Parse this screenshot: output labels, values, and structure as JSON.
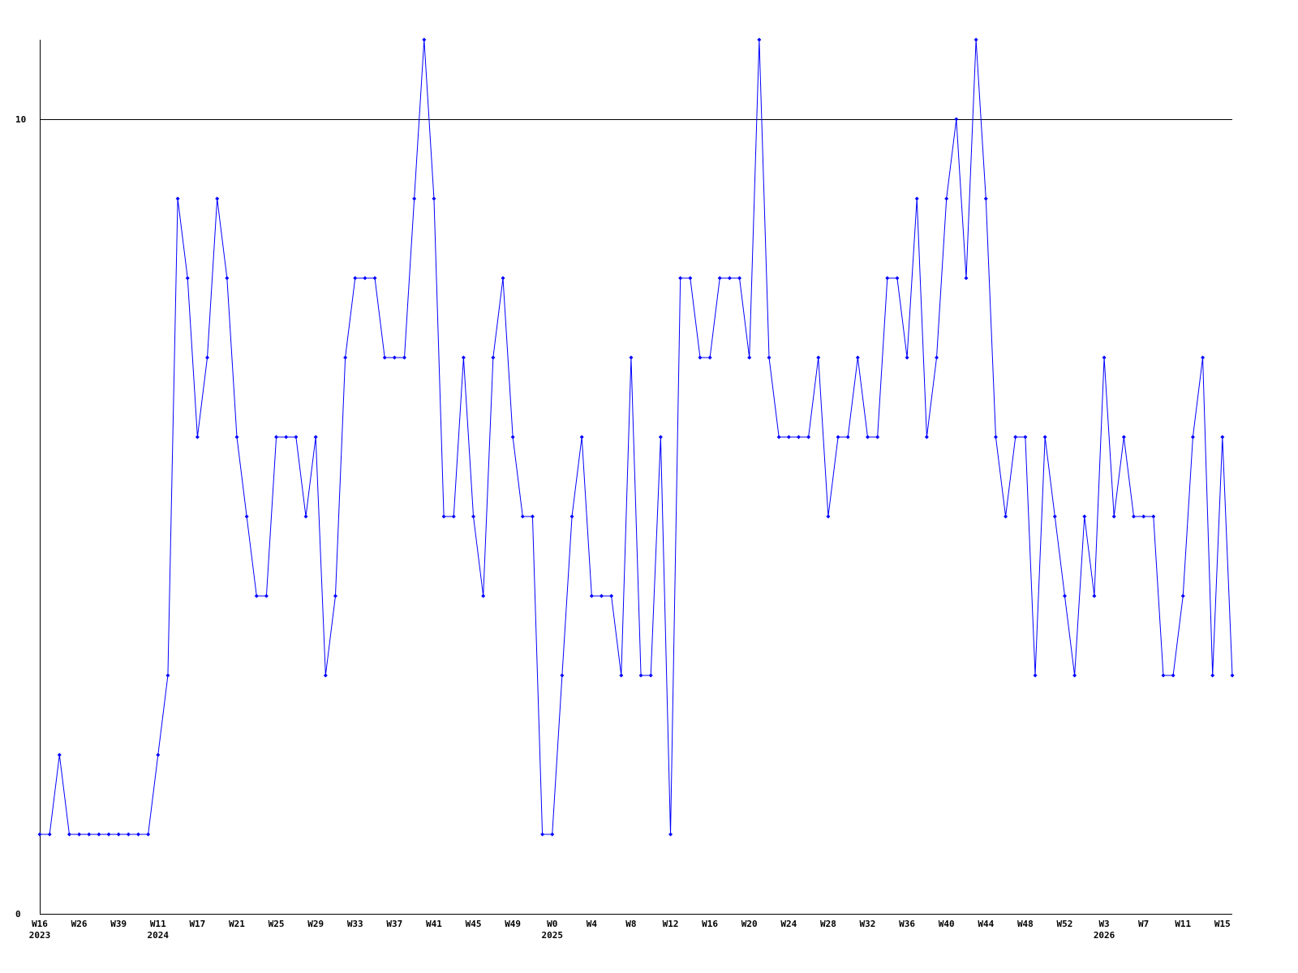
{
  "chart_data": {
    "type": "line",
    "color": "#0000ff",
    "categories": [
      "W16\n2023",
      null,
      null,
      null,
      "W26",
      null,
      null,
      null,
      "W39",
      null,
      null,
      null,
      "W11\n2024",
      null,
      null,
      null,
      "W17",
      null,
      null,
      null,
      "W21",
      null,
      null,
      null,
      "W25",
      null,
      null,
      null,
      "W29",
      null,
      null,
      null,
      "W33",
      null,
      null,
      null,
      "W37",
      null,
      null,
      null,
      "W41",
      null,
      null,
      null,
      "W45",
      null,
      null,
      null,
      "W49",
      null,
      null,
      null,
      "W0\n2025",
      null,
      null,
      null,
      "W4",
      null,
      null,
      null,
      "W8",
      null,
      null,
      null,
      "W12",
      null,
      null,
      null,
      "W16",
      null,
      null,
      null,
      "W20",
      null,
      null,
      null,
      "W24",
      null,
      null,
      null,
      "W28",
      null,
      null,
      null,
      "W32",
      null,
      null,
      null,
      "W36",
      null,
      null,
      null,
      "W40",
      null,
      null,
      null,
      "W44",
      null,
      null,
      null,
      "W48",
      null,
      null,
      null,
      "W52",
      null,
      null,
      null,
      "W3\n2026",
      null,
      null,
      null,
      "W7",
      null,
      null,
      null,
      "W11",
      null,
      null,
      null,
      "W15",
      null
    ],
    "values": [
      1,
      1,
      2,
      1,
      1,
      1,
      1,
      1,
      1,
      1,
      1,
      1,
      2,
      3,
      9,
      8,
      6,
      7,
      9,
      8,
      6,
      5,
      4,
      4,
      6,
      6,
      6,
      5,
      6,
      3,
      4,
      7,
      8,
      8,
      8,
      7,
      7,
      7,
      9,
      11,
      9,
      5,
      5,
      7,
      5,
      4,
      7,
      8,
      6,
      5,
      5,
      1,
      1,
      3,
      5,
      6,
      4,
      4,
      4,
      3,
      7,
      3,
      3,
      6,
      1,
      8,
      8,
      7,
      7,
      8,
      8,
      8,
      7,
      11,
      7,
      6,
      6,
      6,
      6,
      7,
      5,
      6,
      6,
      7,
      6,
      6,
      8,
      8,
      7,
      9,
      6,
      7,
      9,
      10,
      8,
      11,
      9,
      6,
      5,
      6,
      6,
      3,
      6,
      5,
      4,
      3,
      5,
      4,
      7,
      5,
      6,
      5,
      5,
      5,
      3,
      3,
      4,
      6,
      7,
      3,
      6,
      3
    ],
    "ylim": [
      0,
      11
    ],
    "yticks": [
      0,
      10
    ],
    "grid": true
  }
}
